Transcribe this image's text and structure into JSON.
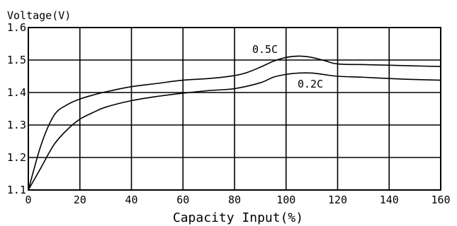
{
  "chart_data": {
    "type": "line",
    "title": "",
    "xlabel": "Capacity Input(%)",
    "ylabel": "Voltage(V)",
    "xlim": [
      0,
      160
    ],
    "ylim": [
      1.1,
      1.6
    ],
    "x_ticks": [
      0,
      20,
      40,
      60,
      80,
      100,
      120,
      140,
      160
    ],
    "y_ticks": [
      1.1,
      1.2,
      1.3,
      1.4,
      1.5,
      1.6
    ],
    "x_tick_labels": [
      "0",
      "20",
      "40",
      "60",
      "80",
      "100",
      "120",
      "140",
      "160"
    ],
    "y_tick_labels": [
      "1.1",
      "1.2",
      "1.3",
      "1.4",
      "1.5",
      "1.6"
    ],
    "grid": true,
    "legend": "none",
    "series": [
      {
        "name": "0.5C",
        "x": [
          0,
          5,
          10,
          15,
          20,
          25,
          30,
          40,
          50,
          60,
          70,
          80,
          85,
          90,
          95,
          100,
          105,
          110,
          115,
          120,
          130,
          140,
          150,
          160
        ],
        "y": [
          1.1,
          1.24,
          1.33,
          1.362,
          1.38,
          1.392,
          1.402,
          1.418,
          1.428,
          1.438,
          1.443,
          1.452,
          1.462,
          1.478,
          1.496,
          1.508,
          1.512,
          1.508,
          1.498,
          1.488,
          1.486,
          1.484,
          1.482,
          1.48
        ]
      },
      {
        "name": "0.2C",
        "x": [
          0,
          5,
          10,
          15,
          20,
          25,
          30,
          40,
          50,
          60,
          70,
          80,
          90,
          95,
          100,
          105,
          110,
          115,
          120,
          130,
          140,
          150,
          160
        ],
        "y": [
          1.1,
          1.17,
          1.24,
          1.285,
          1.318,
          1.338,
          1.355,
          1.375,
          1.388,
          1.398,
          1.406,
          1.412,
          1.43,
          1.447,
          1.456,
          1.46,
          1.46,
          1.455,
          1.45,
          1.447,
          1.443,
          1.44,
          1.438
        ]
      }
    ],
    "annotations": [
      {
        "text": "0.5C",
        "series": "0.5C"
      },
      {
        "text": "0.2C",
        "series": "0.2C"
      }
    ]
  }
}
